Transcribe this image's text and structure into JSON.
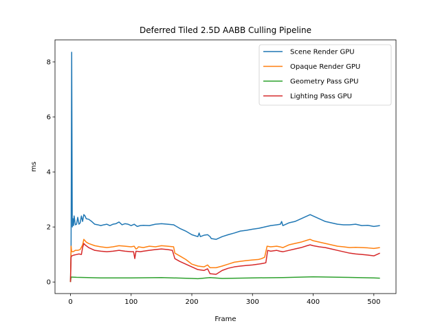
{
  "chart_data": {
    "type": "line",
    "title": "Deferred Tiled 2.5D AABB Culling Pipeline",
    "xlabel": "Frame",
    "ylabel": "ms",
    "xlim": [
      -25.5,
      536.5
    ],
    "ylim": [
      -0.42,
      8.8
    ],
    "xticks": [
      0,
      100,
      200,
      300,
      400,
      500
    ],
    "yticks": [
      0,
      2,
      4,
      6,
      8
    ],
    "grid": false,
    "legend_position": "top-right",
    "series": [
      {
        "name": "Scene Render GPU",
        "color": "#1f77b4",
        "points": [
          [
            0,
            0.02
          ],
          [
            1,
            1.3
          ],
          [
            2,
            8.35
          ],
          [
            3,
            2.0
          ],
          [
            4,
            2.3
          ],
          [
            5,
            2.05
          ],
          [
            6,
            2.4
          ],
          [
            8,
            2.08
          ],
          [
            10,
            2.1
          ],
          [
            12,
            2.35
          ],
          [
            14,
            2.1
          ],
          [
            16,
            2.15
          ],
          [
            18,
            2.4
          ],
          [
            20,
            2.2
          ],
          [
            22,
            2.45
          ],
          [
            24,
            2.4
          ],
          [
            26,
            2.3
          ],
          [
            30,
            2.28
          ],
          [
            35,
            2.2
          ],
          [
            40,
            2.1
          ],
          [
            45,
            2.08
          ],
          [
            50,
            2.05
          ],
          [
            55,
            2.08
          ],
          [
            60,
            2.1
          ],
          [
            65,
            2.05
          ],
          [
            70,
            2.1
          ],
          [
            75,
            2.12
          ],
          [
            80,
            2.18
          ],
          [
            85,
            2.08
          ],
          [
            90,
            2.12
          ],
          [
            95,
            2.1
          ],
          [
            100,
            2.05
          ],
          [
            105,
            2.1
          ],
          [
            110,
            2.02
          ],
          [
            115,
            2.05
          ],
          [
            120,
            2.06
          ],
          [
            130,
            2.05
          ],
          [
            140,
            2.1
          ],
          [
            150,
            2.12
          ],
          [
            160,
            2.1
          ],
          [
            170,
            2.08
          ],
          [
            180,
            1.95
          ],
          [
            190,
            1.85
          ],
          [
            200,
            1.72
          ],
          [
            210,
            1.65
          ],
          [
            212,
            1.78
          ],
          [
            214,
            1.65
          ],
          [
            220,
            1.7
          ],
          [
            226,
            1.72
          ],
          [
            230,
            1.65
          ],
          [
            232,
            1.58
          ],
          [
            240,
            1.55
          ],
          [
            250,
            1.65
          ],
          [
            260,
            1.72
          ],
          [
            270,
            1.78
          ],
          [
            280,
            1.85
          ],
          [
            290,
            1.88
          ],
          [
            300,
            1.92
          ],
          [
            310,
            1.95
          ],
          [
            320,
            2.0
          ],
          [
            330,
            2.05
          ],
          [
            340,
            2.08
          ],
          [
            346,
            2.1
          ],
          [
            348,
            2.2
          ],
          [
            350,
            2.05
          ],
          [
            360,
            2.15
          ],
          [
            370,
            2.2
          ],
          [
            380,
            2.3
          ],
          [
            390,
            2.4
          ],
          [
            395,
            2.45
          ],
          [
            400,
            2.4
          ],
          [
            410,
            2.3
          ],
          [
            420,
            2.2
          ],
          [
            430,
            2.15
          ],
          [
            440,
            2.1
          ],
          [
            450,
            2.08
          ],
          [
            460,
            2.08
          ],
          [
            470,
            2.1
          ],
          [
            480,
            2.05
          ],
          [
            490,
            2.06
          ],
          [
            500,
            2.02
          ],
          [
            510,
            2.05
          ]
        ]
      },
      {
        "name": "Opaque Render GPU",
        "color": "#ff7f0e",
        "points": [
          [
            0,
            0.0
          ],
          [
            1,
            1.3
          ],
          [
            2,
            1.1
          ],
          [
            4,
            1.1
          ],
          [
            6,
            1.12
          ],
          [
            8,
            1.15
          ],
          [
            12,
            1.15
          ],
          [
            16,
            1.18
          ],
          [
            20,
            1.35
          ],
          [
            22,
            1.55
          ],
          [
            24,
            1.5
          ],
          [
            26,
            1.45
          ],
          [
            30,
            1.4
          ],
          [
            40,
            1.32
          ],
          [
            50,
            1.28
          ],
          [
            60,
            1.25
          ],
          [
            70,
            1.28
          ],
          [
            80,
            1.32
          ],
          [
            90,
            1.3
          ],
          [
            100,
            1.28
          ],
          [
            105,
            1.3
          ],
          [
            108,
            1.2
          ],
          [
            110,
            1.22
          ],
          [
            112,
            1.28
          ],
          [
            120,
            1.25
          ],
          [
            130,
            1.3
          ],
          [
            140,
            1.28
          ],
          [
            150,
            1.32
          ],
          [
            160,
            1.3
          ],
          [
            170,
            1.28
          ],
          [
            172,
            1.05
          ],
          [
            180,
            0.95
          ],
          [
            190,
            0.82
          ],
          [
            200,
            0.65
          ],
          [
            210,
            0.58
          ],
          [
            220,
            0.55
          ],
          [
            226,
            0.62
          ],
          [
            230,
            0.52
          ],
          [
            240,
            0.52
          ],
          [
            250,
            0.58
          ],
          [
            260,
            0.65
          ],
          [
            270,
            0.72
          ],
          [
            280,
            0.75
          ],
          [
            290,
            0.78
          ],
          [
            300,
            0.8
          ],
          [
            310,
            0.82
          ],
          [
            315,
            0.85
          ],
          [
            320,
            0.9
          ],
          [
            324,
            1.3
          ],
          [
            330,
            1.28
          ],
          [
            340,
            1.3
          ],
          [
            345,
            1.28
          ],
          [
            350,
            1.25
          ],
          [
            355,
            1.3
          ],
          [
            360,
            1.35
          ],
          [
            370,
            1.4
          ],
          [
            380,
            1.45
          ],
          [
            390,
            1.52
          ],
          [
            395,
            1.55
          ],
          [
            400,
            1.5
          ],
          [
            410,
            1.45
          ],
          [
            420,
            1.4
          ],
          [
            430,
            1.35
          ],
          [
            440,
            1.3
          ],
          [
            450,
            1.28
          ],
          [
            460,
            1.25
          ],
          [
            470,
            1.26
          ],
          [
            480,
            1.25
          ],
          [
            490,
            1.24
          ],
          [
            500,
            1.22
          ],
          [
            510,
            1.25
          ]
        ]
      },
      {
        "name": "Geometry Pass GPU",
        "color": "#2ca02c",
        "points": [
          [
            0,
            0.0
          ],
          [
            1,
            0.18
          ],
          [
            10,
            0.17
          ],
          [
            50,
            0.15
          ],
          [
            100,
            0.15
          ],
          [
            150,
            0.16
          ],
          [
            200,
            0.13
          ],
          [
            210,
            0.12
          ],
          [
            230,
            0.16
          ],
          [
            250,
            0.13
          ],
          [
            300,
            0.15
          ],
          [
            350,
            0.16
          ],
          [
            400,
            0.19
          ],
          [
            450,
            0.17
          ],
          [
            500,
            0.15
          ],
          [
            510,
            0.14
          ]
        ]
      },
      {
        "name": "Lighting Pass GPU",
        "color": "#d62728",
        "points": [
          [
            0,
            0.0
          ],
          [
            1,
            0.9
          ],
          [
            2,
            0.95
          ],
          [
            6,
            0.98
          ],
          [
            10,
            1.0
          ],
          [
            14,
            1.02
          ],
          [
            18,
            1.0
          ],
          [
            20,
            1.25
          ],
          [
            22,
            1.4
          ],
          [
            24,
            1.35
          ],
          [
            30,
            1.25
          ],
          [
            40,
            1.15
          ],
          [
            50,
            1.12
          ],
          [
            60,
            1.1
          ],
          [
            70,
            1.12
          ],
          [
            80,
            1.15
          ],
          [
            90,
            1.12
          ],
          [
            100,
            1.1
          ],
          [
            104,
            1.1
          ],
          [
            106,
            0.85
          ],
          [
            108,
            1.12
          ],
          [
            115,
            1.1
          ],
          [
            120,
            1.12
          ],
          [
            130,
            1.15
          ],
          [
            140,
            1.18
          ],
          [
            150,
            1.2
          ],
          [
            160,
            1.18
          ],
          [
            168,
            1.15
          ],
          [
            172,
            0.85
          ],
          [
            180,
            0.75
          ],
          [
            190,
            0.65
          ],
          [
            200,
            0.55
          ],
          [
            210,
            0.45
          ],
          [
            220,
            0.42
          ],
          [
            226,
            0.48
          ],
          [
            230,
            0.3
          ],
          [
            240,
            0.28
          ],
          [
            250,
            0.42
          ],
          [
            260,
            0.5
          ],
          [
            270,
            0.55
          ],
          [
            280,
            0.58
          ],
          [
            290,
            0.6
          ],
          [
            300,
            0.62
          ],
          [
            310,
            0.65
          ],
          [
            318,
            0.68
          ],
          [
            322,
            0.7
          ],
          [
            325,
            1.15
          ],
          [
            330,
            1.12
          ],
          [
            340,
            1.15
          ],
          [
            345,
            1.12
          ],
          [
            350,
            1.1
          ],
          [
            360,
            1.15
          ],
          [
            370,
            1.2
          ],
          [
            380,
            1.25
          ],
          [
            390,
            1.32
          ],
          [
            395,
            1.35
          ],
          [
            400,
            1.32
          ],
          [
            410,
            1.28
          ],
          [
            420,
            1.25
          ],
          [
            430,
            1.2
          ],
          [
            440,
            1.15
          ],
          [
            450,
            1.1
          ],
          [
            460,
            1.05
          ],
          [
            470,
            1.02
          ],
          [
            480,
            1.0
          ],
          [
            490,
            0.98
          ],
          [
            500,
            0.95
          ],
          [
            510,
            1.05
          ]
        ]
      }
    ]
  }
}
